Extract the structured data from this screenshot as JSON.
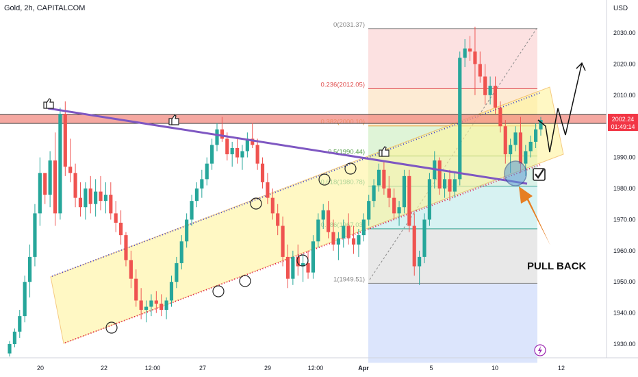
{
  "header": {
    "title": "Gold, 2h, CAPITALCOM"
  },
  "axis": {
    "currency": "USD"
  },
  "colors": {
    "up": "#26a69a",
    "down": "#ef5350",
    "trend": "#7e57c2",
    "channel_fill": "#fff59d",
    "channel_edge": "#f0a830",
    "resistance": "#f28b82",
    "pullback_arrow": "#e67e22"
  },
  "chart_data": {
    "type": "candlestick",
    "title": "Gold, 2h, CAPITALCOM",
    "ylabel": "USD",
    "ylim": [
      1924,
      2036
    ],
    "y_ticks": [
      "2030.00",
      "2020.00",
      "2010.00",
      "2000.00",
      "1990.00",
      "1980.00",
      "1970.00",
      "1960.00",
      "1950.00",
      "1940.00",
      "1930.00"
    ],
    "x_ticks": [
      "20",
      "22",
      "12:00",
      "27",
      "29",
      "12:00",
      "Apr",
      "5",
      "10",
      "12"
    ],
    "current_price": "2002.24",
    "countdown": "01:49:14",
    "fibonacci": {
      "levels": [
        {
          "ratio": "0",
          "price": 2031.37,
          "label": "0(2031.37)"
        },
        {
          "ratio": "0.236",
          "price": 2012.05,
          "label": "0.236(2012.05)"
        },
        {
          "ratio": "0.382",
          "price": 2000.1,
          "label": "0.382(2000.10)"
        },
        {
          "ratio": "0.5",
          "price": 1990.44,
          "label": "0.5(1990.44)"
        },
        {
          "ratio": "0.618",
          "price": 1980.78,
          "label": "0.618(1980.78)"
        },
        {
          "ratio": "0.786",
          "price": 1967.03,
          "label": "0.786(1967.03)"
        },
        {
          "ratio": "1",
          "price": 1949.51,
          "label": "1(1949.51)"
        }
      ]
    },
    "annotations": {
      "pullback": "PULL BACK"
    },
    "series": [
      {
        "values": [
          [
            1927,
            1931,
            1926,
            1930
          ],
          [
            1930,
            1935,
            1929,
            1934
          ],
          [
            1934,
            1941,
            1932,
            1939
          ],
          [
            1939,
            1952,
            1937,
            1950
          ],
          [
            1950,
            1962,
            1945,
            1958
          ],
          [
            1958,
            1975,
            1955,
            1972
          ],
          [
            1972,
            1990,
            1968,
            1985
          ],
          [
            1985,
            1980,
            1975,
            1978
          ],
          [
            1978,
            1992,
            1974,
            1989
          ],
          [
            1989,
            1998,
            1968,
            1972
          ],
          [
            1972,
            2006,
            1970,
            2004
          ],
          [
            2004,
            2008,
            1984,
            1987
          ],
          [
            1987,
            1996,
            1982,
            1985
          ],
          [
            1985,
            1988,
            1974,
            1977
          ],
          [
            1977,
            1982,
            1971,
            1974
          ],
          [
            1974,
            1982,
            1970,
            1980
          ],
          [
            1980,
            1984,
            1972,
            1975
          ],
          [
            1975,
            1983,
            1971,
            1979
          ],
          [
            1979,
            1984,
            1973,
            1976
          ],
          [
            1976,
            1982,
            1972,
            1978
          ],
          [
            1978,
            1982,
            1970,
            1972
          ],
          [
            1972,
            1976,
            1966,
            1969
          ],
          [
            1969,
            1973,
            1962,
            1965
          ],
          [
            1965,
            1966,
            1955,
            1957
          ],
          [
            1957,
            1960,
            1948,
            1951
          ],
          [
            1951,
            1954,
            1942,
            1944
          ],
          [
            1944,
            1948,
            1938,
            1941
          ],
          [
            1941,
            1944,
            1937,
            1942
          ],
          [
            1942,
            1946,
            1939,
            1944
          ],
          [
            1944,
            1947,
            1940,
            1943
          ],
          [
            1943,
            1946,
            1939,
            1941
          ],
          [
            1941,
            1945,
            1938,
            1944
          ],
          [
            1944,
            1952,
            1942,
            1950
          ],
          [
            1950,
            1958,
            1948,
            1956
          ],
          [
            1956,
            1965,
            1954,
            1963
          ],
          [
            1963,
            1972,
            1961,
            1970
          ],
          [
            1970,
            1978,
            1968,
            1976
          ],
          [
            1976,
            1982,
            1974,
            1980
          ],
          [
            1980,
            1986,
            1977,
            1983
          ],
          [
            1983,
            1990,
            1981,
            1988
          ],
          [
            1988,
            1996,
            1986,
            1994
          ],
          [
            1994,
            2001,
            1992,
            1999
          ],
          [
            1999,
            2003,
            1995,
            1996
          ],
          [
            1996,
            1998,
            1989,
            1991
          ],
          [
            1991,
            1995,
            1987,
            1993
          ],
          [
            1993,
            1996,
            1988,
            1990
          ],
          [
            1990,
            1994,
            1986,
            1992
          ],
          [
            1992,
            1998,
            1990,
            1996
          ],
          [
            1996,
            2001,
            1993,
            1994
          ],
          [
            1994,
            1996,
            1986,
            1988
          ],
          [
            1988,
            1990,
            1980,
            1982
          ],
          [
            1982,
            1985,
            1975,
            1977
          ],
          [
            1977,
            1980,
            1970,
            1972
          ],
          [
            1972,
            1975,
            1965,
            1968
          ],
          [
            1968,
            1971,
            1955,
            1958
          ],
          [
            1958,
            1962,
            1948,
            1951
          ],
          [
            1951,
            1960,
            1949,
            1958
          ],
          [
            1958,
            1962,
            1952,
            1955
          ],
          [
            1955,
            1959,
            1950,
            1956
          ],
          [
            1956,
            1960,
            1951,
            1953
          ],
          [
            1953,
            1965,
            1951,
            1963
          ],
          [
            1963,
            1972,
            1961,
            1970
          ],
          [
            1970,
            1975,
            1967,
            1973
          ],
          [
            1973,
            1976,
            1964,
            1966
          ],
          [
            1966,
            1970,
            1960,
            1962
          ],
          [
            1962,
            1966,
            1957,
            1964
          ],
          [
            1964,
            1970,
            1961,
            1968
          ],
          [
            1968,
            1972,
            1962,
            1964
          ],
          [
            1964,
            1968,
            1959,
            1962
          ],
          [
            1962,
            1967,
            1958,
            1965
          ],
          [
            1965,
            1972,
            1963,
            1970
          ],
          [
            1970,
            1978,
            1968,
            1976
          ],
          [
            1976,
            1983,
            1974,
            1981
          ],
          [
            1981,
            1988,
            1979,
            1986
          ],
          [
            1986,
            1989,
            1978,
            1980
          ],
          [
            1980,
            1984,
            1974,
            1977
          ],
          [
            1977,
            1980,
            1970,
            1972
          ],
          [
            1972,
            1976,
            1968,
            1974
          ],
          [
            1974,
            1986,
            1972,
            1984
          ],
          [
            1984,
            1986,
            1966,
            1968
          ],
          [
            1968,
            1972,
            1952,
            1955
          ],
          [
            1955,
            1960,
            1949,
            1958
          ],
          [
            1958,
            1972,
            1956,
            1970
          ],
          [
            1970,
            1985,
            1968,
            1983
          ],
          [
            1983,
            1992,
            1980,
            1989
          ],
          [
            1989,
            1990,
            1978,
            1980
          ],
          [
            1980,
            1985,
            1977,
            1983
          ],
          [
            1983,
            1986,
            1976,
            1979
          ],
          [
            1979,
            1985,
            1977,
            1983
          ],
          [
            1983,
            2024,
            1981,
            2022
          ],
          [
            2022,
            2028,
            2019,
            2025
          ],
          [
            2025,
            2029,
            2021,
            2024
          ],
          [
            2024,
            2032,
            2010,
            2020
          ],
          [
            2020,
            2024,
            2014,
            2016
          ],
          [
            2016,
            2020,
            2007,
            2010
          ],
          [
            2010,
            2016,
            2007,
            2013
          ],
          [
            2013,
            2016,
            2004,
            2006
          ],
          [
            2006,
            2008,
            1998,
            2000
          ],
          [
            2000,
            2002,
            1988,
            1991
          ],
          [
            1991,
            1996,
            1985,
            1994
          ],
          [
            1994,
            2000,
            1992,
            1998
          ],
          [
            1998,
            2003,
            1985,
            1988
          ],
          [
            1988,
            1994,
            1984,
            1992
          ],
          [
            1992,
            1997,
            1990,
            1995
          ],
          [
            1995,
            2001,
            1993,
            1999
          ],
          [
            1999,
            2003,
            1997,
            2002
          ]
        ]
      }
    ],
    "legend": "none",
    "grid": false
  }
}
